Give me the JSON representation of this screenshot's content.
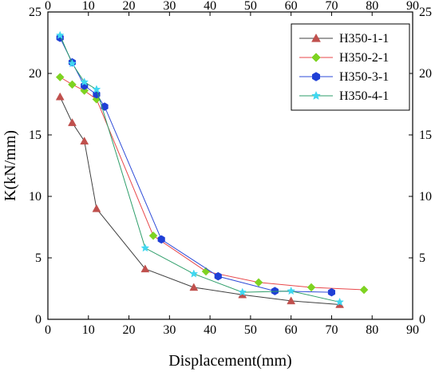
{
  "chart_data": {
    "type": "line",
    "xlabel": "Displacement(mm)",
    "ylabel": "K(kN/mm)",
    "xlim": [
      0,
      90
    ],
    "ylim": [
      0,
      25
    ],
    "x_ticks": [
      "0",
      "10",
      "20",
      "30",
      "40",
      "50",
      "60",
      "70",
      "80",
      "90"
    ],
    "y_ticks": [
      "0",
      "5",
      "10",
      "15",
      "20",
      "25"
    ],
    "grid": false,
    "legend_position": "top-right",
    "series": [
      {
        "name": "H350-1-1",
        "color": "#c0504d",
        "line_color": "#404040",
        "marker": "triangle",
        "x": [
          3,
          6,
          9,
          12,
          24,
          36,
          48,
          60,
          72
        ],
        "y": [
          18.1,
          16.0,
          14.5,
          9.0,
          4.1,
          2.6,
          2.0,
          1.5,
          1.2
        ]
      },
      {
        "name": "H350-2-1",
        "color": "#7ed321",
        "line_color": "#e8474a",
        "marker": "diamond",
        "x": [
          3,
          6,
          9,
          12,
          26,
          39,
          52,
          65,
          78
        ],
        "y": [
          19.7,
          19.1,
          18.6,
          17.9,
          6.8,
          3.9,
          3.0,
          2.6,
          2.4
        ]
      },
      {
        "name": "H350-3-1",
        "color": "#1f3fd6",
        "line_color": "#2e4bd8",
        "marker": "hexagon",
        "x": [
          3,
          6,
          9,
          12,
          14,
          28,
          42,
          56,
          70
        ],
        "y": [
          22.9,
          20.9,
          19.0,
          18.3,
          17.3,
          6.5,
          3.5,
          2.3,
          2.2
        ]
      },
      {
        "name": "H350-4-1",
        "color": "#3fd7f0",
        "line_color": "#2e9e6a",
        "marker": "star",
        "x": [
          3,
          6,
          9,
          12,
          24,
          36,
          48,
          60,
          72
        ],
        "y": [
          23.1,
          20.8,
          19.3,
          18.7,
          5.8,
          3.7,
          2.2,
          2.3,
          1.4
        ]
      }
    ]
  }
}
